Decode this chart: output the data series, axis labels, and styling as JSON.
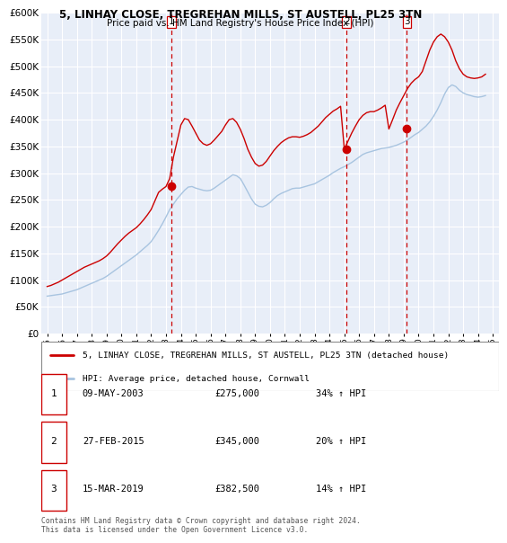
{
  "title": "5, LINHAY CLOSE, TREGREHAN MILLS, ST AUSTELL, PL25 3TN",
  "subtitle": "Price paid vs. HM Land Registry's House Price Index (HPI)",
  "ylim": [
    0,
    600000
  ],
  "yticks": [
    0,
    50000,
    100000,
    150000,
    200000,
    250000,
    300000,
    350000,
    400000,
    450000,
    500000,
    550000,
    600000
  ],
  "xlim_start": 1994.6,
  "xlim_end": 2025.4,
  "xticks": [
    1995,
    1996,
    1997,
    1998,
    1999,
    2000,
    2001,
    2002,
    2003,
    2004,
    2005,
    2006,
    2007,
    2008,
    2009,
    2010,
    2011,
    2012,
    2013,
    2014,
    2015,
    2016,
    2017,
    2018,
    2019,
    2020,
    2021,
    2022,
    2023,
    2024,
    2025
  ],
  "background_color": "#ffffff",
  "plot_bg_color": "#e8eef8",
  "grid_color": "#ffffff",
  "hpi_line_color": "#a8c4e0",
  "price_line_color": "#cc0000",
  "sale_marker_color": "#cc0000",
  "dashed_line_color": "#cc0000",
  "legend_label_price": "5, LINHAY CLOSE, TREGREHAN MILLS, ST AUSTELL, PL25 3TN (detached house)",
  "legend_label_hpi": "HPI: Average price, detached house, Cornwall",
  "transactions": [
    {
      "label": "1",
      "date": 2003.36,
      "price": 275000,
      "display_date": "09-MAY-2003",
      "display_price": "£275,000",
      "display_hpi": "34% ↑ HPI"
    },
    {
      "label": "2",
      "date": 2015.16,
      "price": 345000,
      "display_date": "27-FEB-2015",
      "display_price": "£345,000",
      "display_hpi": "20% ↑ HPI"
    },
    {
      "label": "3",
      "date": 2019.21,
      "price": 382500,
      "display_date": "15-MAR-2019",
      "display_price": "£382,500",
      "display_hpi": "14% ↑ HPI"
    }
  ],
  "footer_text": "Contains HM Land Registry data © Crown copyright and database right 2024.\nThis data is licensed under the Open Government Licence v3.0.",
  "hpi_data_x": [
    1995.0,
    1995.25,
    1995.5,
    1995.75,
    1996.0,
    1996.25,
    1996.5,
    1996.75,
    1997.0,
    1997.25,
    1997.5,
    1997.75,
    1998.0,
    1998.25,
    1998.5,
    1998.75,
    1999.0,
    1999.25,
    1999.5,
    1999.75,
    2000.0,
    2000.25,
    2000.5,
    2000.75,
    2001.0,
    2001.25,
    2001.5,
    2001.75,
    2002.0,
    2002.25,
    2002.5,
    2002.75,
    2003.0,
    2003.25,
    2003.5,
    2003.75,
    2004.0,
    2004.25,
    2004.5,
    2004.75,
    2005.0,
    2005.25,
    2005.5,
    2005.75,
    2006.0,
    2006.25,
    2006.5,
    2006.75,
    2007.0,
    2007.25,
    2007.5,
    2007.75,
    2008.0,
    2008.25,
    2008.5,
    2008.75,
    2009.0,
    2009.25,
    2009.5,
    2009.75,
    2010.0,
    2010.25,
    2010.5,
    2010.75,
    2011.0,
    2011.25,
    2011.5,
    2011.75,
    2012.0,
    2012.25,
    2012.5,
    2012.75,
    2013.0,
    2013.25,
    2013.5,
    2013.75,
    2014.0,
    2014.25,
    2014.5,
    2014.75,
    2015.0,
    2015.25,
    2015.5,
    2015.75,
    2016.0,
    2016.25,
    2016.5,
    2016.75,
    2017.0,
    2017.25,
    2017.5,
    2017.75,
    2018.0,
    2018.25,
    2018.5,
    2018.75,
    2019.0,
    2019.25,
    2019.5,
    2019.75,
    2020.0,
    2020.25,
    2020.5,
    2020.75,
    2021.0,
    2021.25,
    2021.5,
    2021.75,
    2022.0,
    2022.25,
    2022.5,
    2022.75,
    2023.0,
    2023.25,
    2023.5,
    2023.75,
    2024.0,
    2024.25,
    2024.5
  ],
  "hpi_data_y": [
    70000,
    71000,
    72000,
    73000,
    74000,
    76000,
    78000,
    80000,
    82000,
    85000,
    88000,
    91000,
    94000,
    97000,
    100000,
    103000,
    107000,
    112000,
    117000,
    122000,
    127000,
    132000,
    137000,
    142000,
    147000,
    153000,
    159000,
    165000,
    172000,
    182000,
    193000,
    205000,
    218000,
    232000,
    242000,
    252000,
    260000,
    268000,
    274000,
    275000,
    272000,
    270000,
    268000,
    267000,
    268000,
    272000,
    277000,
    282000,
    287000,
    292000,
    297000,
    295000,
    290000,
    278000,
    265000,
    252000,
    242000,
    238000,
    237000,
    240000,
    245000,
    252000,
    258000,
    262000,
    265000,
    268000,
    271000,
    272000,
    272000,
    274000,
    276000,
    278000,
    280000,
    284000,
    288000,
    292000,
    296000,
    301000,
    305000,
    309000,
    312000,
    316000,
    320000,
    325000,
    330000,
    335000,
    338000,
    340000,
    342000,
    344000,
    346000,
    347000,
    348000,
    350000,
    352000,
    355000,
    358000,
    362000,
    367000,
    372000,
    376000,
    382000,
    388000,
    396000,
    406000,
    418000,
    432000,
    448000,
    460000,
    465000,
    462000,
    455000,
    450000,
    447000,
    445000,
    443000,
    442000,
    443000,
    445000
  ],
  "price_data_x": [
    1995.0,
    1995.25,
    1995.5,
    1995.75,
    1996.0,
    1996.25,
    1996.5,
    1996.75,
    1997.0,
    1997.25,
    1997.5,
    1997.75,
    1998.0,
    1998.25,
    1998.5,
    1998.75,
    1999.0,
    1999.25,
    1999.5,
    1999.75,
    2000.0,
    2000.25,
    2000.5,
    2000.75,
    2001.0,
    2001.25,
    2001.5,
    2001.75,
    2002.0,
    2002.25,
    2002.5,
    2002.75,
    2003.0,
    2003.25,
    2003.5,
    2003.75,
    2004.0,
    2004.25,
    2004.5,
    2004.75,
    2005.0,
    2005.25,
    2005.5,
    2005.75,
    2006.0,
    2006.25,
    2006.5,
    2006.75,
    2007.0,
    2007.25,
    2007.5,
    2007.75,
    2008.0,
    2008.25,
    2008.5,
    2008.75,
    2009.0,
    2009.25,
    2009.5,
    2009.75,
    2010.0,
    2010.25,
    2010.5,
    2010.75,
    2011.0,
    2011.25,
    2011.5,
    2011.75,
    2012.0,
    2012.25,
    2012.5,
    2012.75,
    2013.0,
    2013.25,
    2013.5,
    2013.75,
    2014.0,
    2014.25,
    2014.5,
    2014.75,
    2015.0,
    2015.25,
    2015.5,
    2015.75,
    2016.0,
    2016.25,
    2016.5,
    2016.75,
    2017.0,
    2017.25,
    2017.5,
    2017.75,
    2018.0,
    2018.25,
    2018.5,
    2018.75,
    2019.0,
    2019.25,
    2019.5,
    2019.75,
    2020.0,
    2020.25,
    2020.5,
    2020.75,
    2021.0,
    2021.25,
    2021.5,
    2021.75,
    2022.0,
    2022.25,
    2022.5,
    2022.75,
    2023.0,
    2023.25,
    2023.5,
    2023.75,
    2024.0,
    2024.25,
    2024.5
  ],
  "price_data_y": [
    88000,
    90000,
    93000,
    96000,
    100000,
    104000,
    108000,
    112000,
    116000,
    120000,
    124000,
    127000,
    130000,
    133000,
    136000,
    140000,
    145000,
    152000,
    160000,
    168000,
    175000,
    182000,
    188000,
    193000,
    198000,
    205000,
    213000,
    222000,
    232000,
    248000,
    264000,
    270000,
    275000,
    290000,
    330000,
    360000,
    390000,
    402000,
    400000,
    388000,
    375000,
    362000,
    355000,
    352000,
    355000,
    362000,
    370000,
    378000,
    390000,
    400000,
    402000,
    395000,
    382000,
    365000,
    345000,
    330000,
    318000,
    313000,
    315000,
    322000,
    332000,
    342000,
    350000,
    357000,
    362000,
    366000,
    368000,
    368000,
    367000,
    369000,
    372000,
    376000,
    382000,
    388000,
    396000,
    404000,
    410000,
    416000,
    420000,
    425000,
    345000,
    360000,
    375000,
    388000,
    400000,
    408000,
    413000,
    415000,
    415000,
    418000,
    422000,
    427000,
    382500,
    400000,
    418000,
    432000,
    445000,
    458000,
    468000,
    475000,
    480000,
    490000,
    510000,
    530000,
    545000,
    555000,
    560000,
    555000,
    545000,
    530000,
    510000,
    495000,
    485000,
    480000,
    478000,
    477000,
    478000,
    480000,
    485000
  ]
}
